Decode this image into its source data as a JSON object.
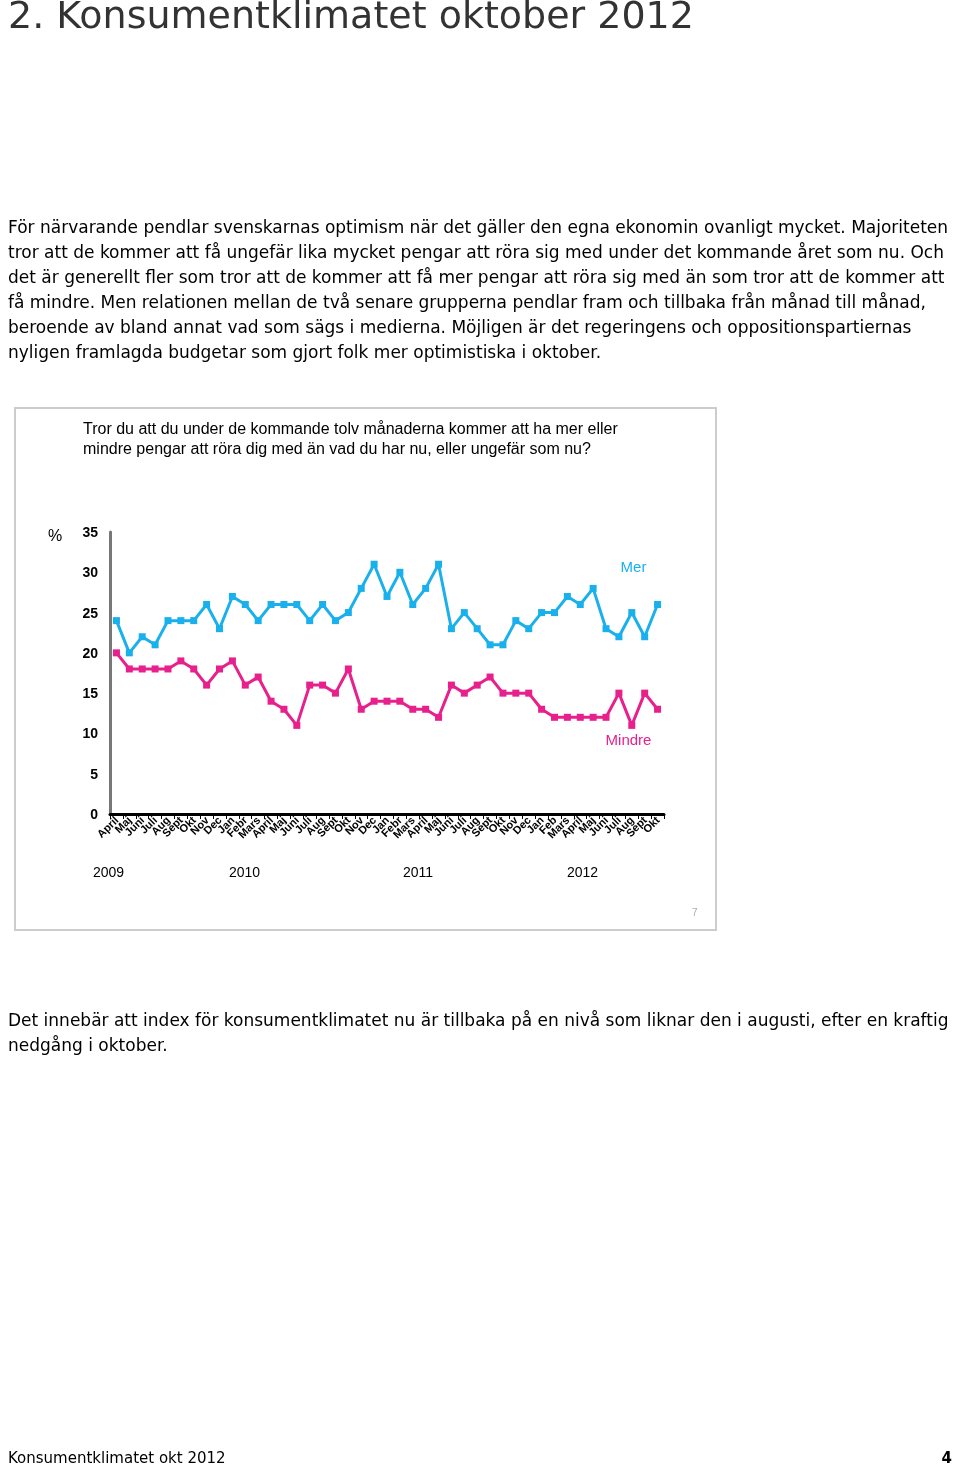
{
  "chart_data": {
    "type": "line",
    "title": "Tror du att du under de kommande tolv månaderna kommer att ha mer eller\nmindre pengar att röra dig med än vad du har nu, eller ungefär som nu?",
    "ylabel": "%",
    "categories": [
      "April",
      "Maj",
      "Juni",
      "Juli",
      "Aug",
      "Sept",
      "Okt",
      "Nov",
      "Dec",
      "Jan",
      "Febr",
      "Mars",
      "April",
      "Maj",
      "Juni",
      "Juli",
      "Aug",
      "Sept",
      "Okt",
      "Nov",
      "Dec",
      "Jan",
      "Febr",
      "Mars",
      "April",
      "Maj",
      "Juni",
      "Juli",
      "Aug",
      "Sept",
      "Okt",
      "Nov",
      "Dec",
      "Jan",
      "Feb",
      "Mars",
      "April",
      "Maj",
      "Juni",
      "Juli",
      "Aug",
      "Sept",
      "Okt"
    ],
    "series": [
      {
        "name": "Mer",
        "color": "#1ab0ec",
        "values": [
          24,
          20,
          22,
          21,
          24,
          24,
          24,
          26,
          23,
          27,
          26,
          24,
          26,
          26,
          26,
          24,
          26,
          24,
          25,
          28,
          31,
          27,
          30,
          26,
          28,
          31,
          23,
          25,
          23,
          21,
          21,
          24,
          23,
          25,
          25,
          27,
          26,
          28,
          23,
          22,
          25,
          22,
          26
        ]
      },
      {
        "name": "Mindre",
        "color": "#e8208c",
        "values": [
          20,
          18,
          18,
          18,
          18,
          19,
          18,
          16,
          18,
          19,
          16,
          17,
          14,
          13,
          11,
          16,
          16,
          15,
          18,
          13,
          14,
          14,
          14,
          13,
          13,
          12,
          16,
          15,
          16,
          17,
          15,
          15,
          15,
          13,
          12,
          12,
          12,
          12,
          12,
          15,
          11,
          15,
          13
        ]
      }
    ],
    "ylim": [
      0,
      35
    ],
    "yticks": [
      0,
      5,
      10,
      15,
      20,
      25,
      30,
      35
    ],
    "grid": false,
    "legend": false,
    "marker": "square",
    "line_style": "solid",
    "annotations": [
      "2. Konsumentklimatet oktober 2012",
      "För närvarande pendlar svenskarnas optimism när det gäller den egna ekonomin ovanligt mycket. Majoriteten tror att de kommer att få ungefär lika mycket pengar att röra sig med under det kommande året som nu. Och det är generellt fler som tror att de kommer att få mer pengar att röra sig med än som tror att de kommer att få mindre. Men relationen mellan de två senare grupperna pendlar fram och tillbaka från månad till månad, beroende av bland annat vad som sägs i medierna. Möjligen är det regeringens och oppositionspartiernas nyligen framlagda budgetar som gjort folk mer optimistiska i oktober.",
      "2009",
      "2010",
      "2011",
      "2012",
      "7",
      "Det innebär att index för konsumentklimatet nu är tillbaka på en nivå som liknar den i augusti, efter en kraftig nedgång i oktober.",
      "Konsumentklimatet okt 2012",
      "4"
    ]
  }
}
